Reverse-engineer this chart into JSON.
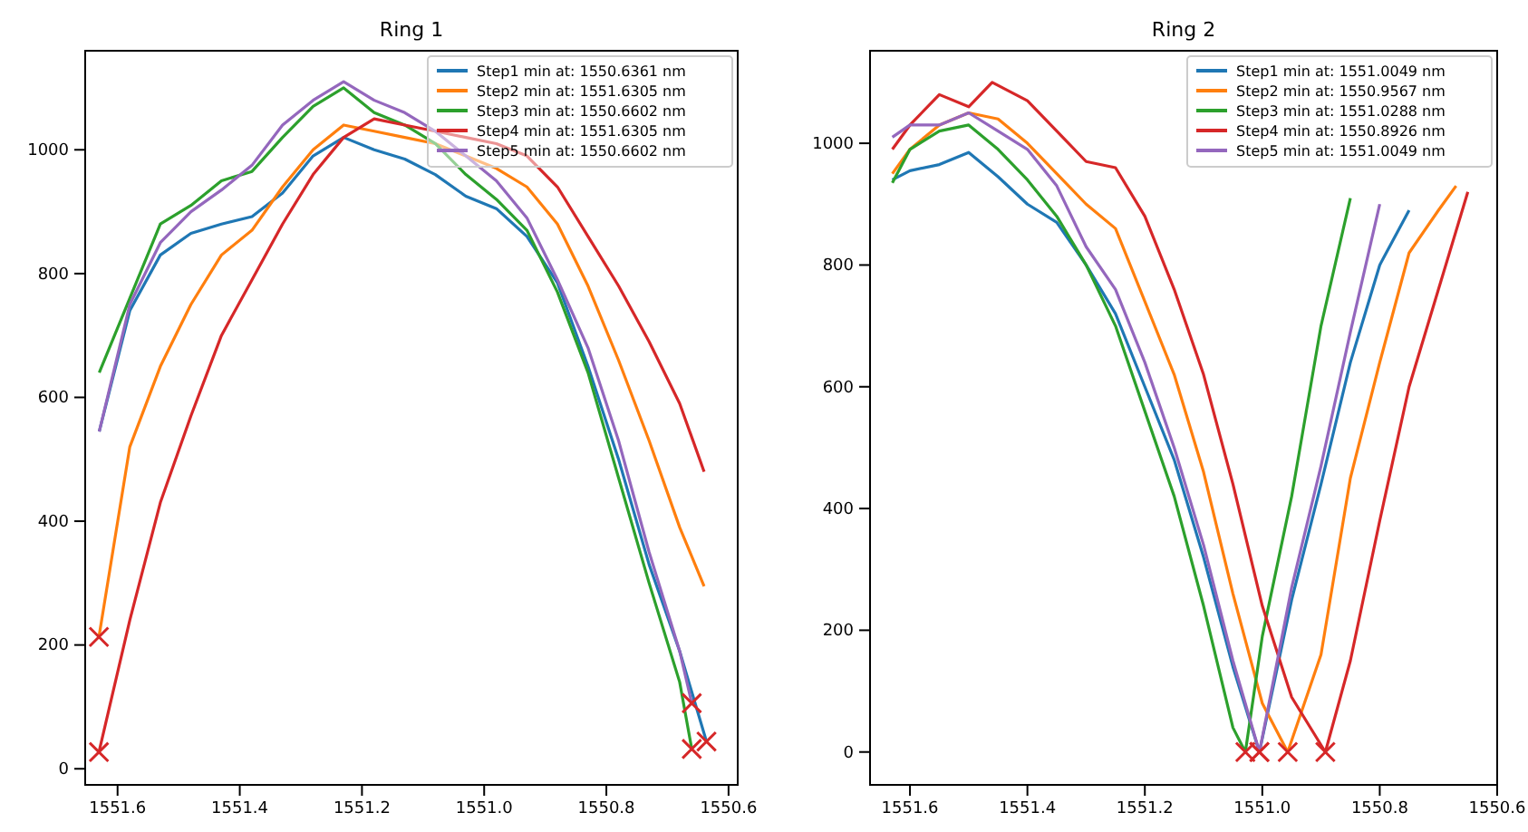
{
  "chart_data": [
    {
      "type": "line",
      "title": "Ring 1",
      "xlim": [
        1551.653,
        1550.585
      ],
      "ylim": [
        -26,
        1160
      ],
      "xticks": [
        1551.6,
        1551.4,
        1551.2,
        {
          "value": 1551,
          "label": "1551.0"
        },
        1550.8,
        1550.6
      ],
      "yticks": [
        0,
        200,
        400,
        600,
        800,
        1000
      ],
      "legend": "top right",
      "grid": false,
      "marker": "none",
      "series": [
        {
          "name": "Step1 min at: 1550.6361 nm",
          "color": "#1f77b4",
          "x": [
            1551.63,
            1551.58,
            1551.53,
            1551.48,
            1551.43,
            1551.38,
            1551.33,
            1551.28,
            1551.23,
            1551.18,
            1551.13,
            1551.08,
            1551.03,
            1550.98,
            1550.93,
            1550.88,
            1550.83,
            1550.78,
            1550.73,
            1550.68,
            1550.6361
          ],
          "values": [
            545,
            740,
            830,
            865,
            880,
            892,
            930,
            990,
            1020,
            1000,
            985,
            960,
            925,
            905,
            860,
            785,
            650,
            500,
            330,
            190,
            44
          ]
        },
        {
          "name": "Step2 min at: 1551.6305 nm",
          "color": "#ff7f0e",
          "x": [
            1551.6305,
            1551.58,
            1551.53,
            1551.48,
            1551.43,
            1551.38,
            1551.33,
            1551.28,
            1551.23,
            1551.18,
            1551.13,
            1551.08,
            1551.03,
            1550.98,
            1550.93,
            1550.88,
            1550.83,
            1550.78,
            1550.73,
            1550.68,
            1550.64
          ],
          "values": [
            213,
            520,
            650,
            750,
            830,
            870,
            940,
            1000,
            1040,
            1030,
            1020,
            1010,
            990,
            970,
            940,
            880,
            780,
            660,
            530,
            390,
            295
          ]
        },
        {
          "name": "Step3 min at: 1550.6602 nm",
          "color": "#2ca02c",
          "x": [
            1551.63,
            1551.58,
            1551.53,
            1551.48,
            1551.43,
            1551.38,
            1551.33,
            1551.28,
            1551.23,
            1551.18,
            1551.13,
            1551.08,
            1551.03,
            1550.98,
            1550.93,
            1550.88,
            1550.83,
            1550.78,
            1550.73,
            1550.68,
            1550.6602
          ],
          "values": [
            640,
            760,
            880,
            910,
            950,
            965,
            1020,
            1070,
            1100,
            1060,
            1040,
            1010,
            960,
            920,
            870,
            770,
            640,
            470,
            300,
            140,
            32
          ]
        },
        {
          "name": "Step4 min at: 1551.6305 nm",
          "color": "#d62728",
          "x": [
            1551.6305,
            1551.58,
            1551.53,
            1551.48,
            1551.43,
            1551.38,
            1551.33,
            1551.28,
            1551.23,
            1551.18,
            1551.13,
            1551.08,
            1551.03,
            1550.98,
            1550.93,
            1550.88,
            1550.83,
            1550.78,
            1550.73,
            1550.68,
            1550.64
          ],
          "values": [
            27,
            240,
            430,
            570,
            700,
            790,
            880,
            960,
            1020,
            1050,
            1040,
            1030,
            1020,
            1010,
            990,
            940,
            860,
            780,
            690,
            590,
            480
          ]
        },
        {
          "name": "Step5 min at: 1550.6602 nm",
          "color": "#9467bd",
          "x": [
            1551.63,
            1551.58,
            1551.53,
            1551.48,
            1551.43,
            1551.38,
            1551.33,
            1551.28,
            1551.23,
            1551.18,
            1551.13,
            1551.08,
            1551.03,
            1550.98,
            1550.93,
            1550.88,
            1550.83,
            1550.78,
            1550.73,
            1550.68,
            1550.6602
          ],
          "values": [
            545,
            750,
            850,
            900,
            935,
            975,
            1040,
            1080,
            1110,
            1080,
            1060,
            1030,
            990,
            950,
            890,
            790,
            680,
            530,
            350,
            190,
            106
          ]
        },
        {
          "type": "scatter",
          "marker": "cross",
          "color": "#d62728",
          "x": [
            1550.6361,
            1551.6305,
            1550.6602,
            1551.6305,
            1550.6602
          ],
          "values": [
            44,
            213,
            32,
            27,
            106
          ]
        }
      ]
    },
    {
      "type": "line",
      "title": "Ring 2",
      "xlim": [
        1551.668,
        1550.6
      ],
      "ylim": [
        -54,
        1152
      ],
      "xticks": [
        1551.6,
        1551.4,
        1551.2,
        {
          "value": 1551,
          "label": "1551.0"
        },
        1550.8,
        1550.6
      ],
      "yticks": [
        0,
        200,
        400,
        600,
        800,
        1000
      ],
      "legend": "top right",
      "grid": false,
      "marker": "none",
      "series": [
        {
          "name": "Step1 min at: 1551.0049 nm",
          "color": "#1f77b4",
          "x": [
            1551.63,
            1551.6,
            1551.55,
            1551.5,
            1551.45,
            1551.4,
            1551.35,
            1551.3,
            1551.25,
            1551.2,
            1551.15,
            1551.1,
            1551.05,
            1551.0049,
            1550.95,
            1550.9,
            1550.85,
            1550.8,
            1550.75
          ],
          "values": [
            940,
            955,
            965,
            985,
            945,
            900,
            870,
            800,
            720,
            600,
            480,
            320,
            140,
            0,
            250,
            440,
            640,
            800,
            890
          ]
        },
        {
          "name": "Step2 min at: 1550.9567 nm",
          "color": "#ff7f0e",
          "x": [
            1551.63,
            1551.6,
            1551.55,
            1551.5,
            1551.45,
            1551.4,
            1551.35,
            1551.3,
            1551.25,
            1551.2,
            1551.15,
            1551.1,
            1551.05,
            1551.0,
            1550.9567,
            1550.9,
            1550.85,
            1550.8,
            1550.75,
            1550.7,
            1550.67
          ],
          "values": [
            950,
            990,
            1030,
            1050,
            1040,
            1000,
            950,
            900,
            860,
            740,
            620,
            460,
            260,
            80,
            0,
            160,
            450,
            640,
            820,
            890,
            930
          ]
        },
        {
          "name": "Step3 min at: 1551.0288 nm",
          "color": "#2ca02c",
          "x": [
            1551.63,
            1551.6,
            1551.55,
            1551.5,
            1551.45,
            1551.4,
            1551.35,
            1551.3,
            1551.25,
            1551.2,
            1551.15,
            1551.1,
            1551.05,
            1551.0288,
            1551.0,
            1550.95,
            1550.9,
            1550.85
          ],
          "values": [
            935,
            990,
            1020,
            1030,
            990,
            940,
            880,
            800,
            700,
            560,
            420,
            240,
            40,
            0,
            190,
            420,
            700,
            910
          ]
        },
        {
          "name": "Step4 min at: 1550.8926 nm",
          "color": "#d62728",
          "x": [
            1551.63,
            1551.6,
            1551.55,
            1551.5,
            1551.46,
            1551.4,
            1551.35,
            1551.3,
            1551.25,
            1551.2,
            1551.15,
            1551.1,
            1551.05,
            1551.0,
            1550.95,
            1550.8926,
            1550.85,
            1550.8,
            1550.75,
            1550.7,
            1550.65
          ],
          "values": [
            990,
            1030,
            1080,
            1060,
            1100,
            1070,
            1020,
            970,
            960,
            880,
            760,
            620,
            440,
            240,
            90,
            0,
            150,
            380,
            600,
            760,
            920
          ]
        },
        {
          "name": "Step5 min at: 1551.0049 nm",
          "color": "#9467bd",
          "x": [
            1551.63,
            1551.6,
            1551.55,
            1551.5,
            1551.45,
            1551.4,
            1551.35,
            1551.3,
            1551.25,
            1551.2,
            1551.15,
            1551.1,
            1551.05,
            1551.0049,
            1550.95,
            1550.9,
            1550.85,
            1550.8
          ],
          "values": [
            1010,
            1030,
            1030,
            1050,
            1020,
            990,
            930,
            830,
            760,
            640,
            500,
            340,
            150,
            0,
            270,
            470,
            690,
            900
          ]
        },
        {
          "type": "scatter",
          "marker": "cross",
          "color": "#d62728",
          "x": [
            1551.0049,
            1550.9567,
            1551.0288,
            1550.8926,
            1551.0049
          ],
          "values": [
            0,
            0,
            0,
            0,
            0
          ]
        }
      ]
    }
  ]
}
